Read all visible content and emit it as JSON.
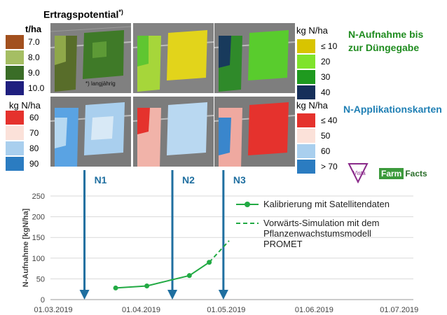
{
  "header": {
    "ertrag_title": "Ertragspotential",
    "ertrag_sup": "*)",
    "ertrag_unit": "t/ha",
    "ertrag_note": "*) langjährig",
    "n_aufnahme_title_l1": "N-Aufnahme bis",
    "n_aufnahme_title_l2": "zur Düngegabe",
    "n_app_title": "N-Applikationskarten"
  },
  "legends": {
    "ertrag": {
      "unit": "t/ha",
      "items": [
        {
          "label": "7.0",
          "color": "#a2501e"
        },
        {
          "label": "8.0",
          "color": "#a5be63"
        },
        {
          "label": "9.0",
          "color": "#3a6d27"
        },
        {
          "label": "10.0",
          "color": "#1f1f7f"
        }
      ]
    },
    "n_aufnahme": {
      "unit": "kg N/ha",
      "items": [
        {
          "label": "≤ 10",
          "color": "#d8c400"
        },
        {
          "label": "20",
          "color": "#7fe32b"
        },
        {
          "label": "30",
          "color": "#1f9a1f"
        },
        {
          "label": "40",
          "color": "#162f5a"
        }
      ]
    },
    "app_left": {
      "unit": "kg N/ha",
      "items": [
        {
          "label": "60",
          "color": "#e5322d"
        },
        {
          "label": "70",
          "color": "#fbe1d9"
        },
        {
          "label": "80",
          "color": "#a9cfee"
        },
        {
          "label": "90",
          "color": "#2b7cc1"
        }
      ]
    },
    "app_right": {
      "unit": "kg N/ha",
      "items": [
        {
          "label": "≤ 40",
          "color": "#e5322d"
        },
        {
          "label": "50",
          "color": "#fbe1d9"
        },
        {
          "label": "60",
          "color": "#a9cfee"
        },
        {
          "label": "> 70",
          "color": "#2b7cc1"
        }
      ]
    }
  },
  "arrows": [
    "N1",
    "N2",
    "N3"
  ],
  "logos": {
    "vista": "Vista",
    "farm": "Farm",
    "facts": "Facts"
  },
  "chart_data": {
    "type": "line",
    "ylabel": "N-Aufnahme [kgN/ha]",
    "xlabel": "",
    "ylim": [
      0,
      250
    ],
    "yticks": [
      "0",
      "50",
      "100",
      "150",
      "200",
      "250"
    ],
    "xticks": [
      "01.03.2019",
      "01.04.2019",
      "01.05.2019",
      "01.06.2019",
      "01.07.2019"
    ],
    "grid": true,
    "series": [
      {
        "name": "Kalibrierung mit Satellitendaten",
        "style": "solid-marker",
        "color": "#22aa44",
        "x": [
          "2019-03-23",
          "2019-04-03",
          "2019-04-18",
          "2019-04-25"
        ],
        "y": [
          28,
          33,
          58,
          90
        ]
      },
      {
        "name": "Vorwärts-Simulation mit dem Pflanzenwachstumsmodell PROMET",
        "style": "dashed",
        "color": "#22aa44",
        "x": [
          "2019-04-25",
          "2019-05-02"
        ],
        "y": [
          90,
          142
        ]
      }
    ],
    "events": [
      {
        "label": "N1",
        "date": "2019-03-12"
      },
      {
        "label": "N2",
        "date": "2019-04-12"
      },
      {
        "label": "N3",
        "date": "2019-04-30"
      }
    ]
  },
  "chart_legend": {
    "l1": "Kalibrierung mit Satellitendaten",
    "l2_1": "Vorwärts-Simulation mit dem",
    "l2_2": "Pflanzenwachstumsmodell",
    "l2_3": "PROMET"
  }
}
